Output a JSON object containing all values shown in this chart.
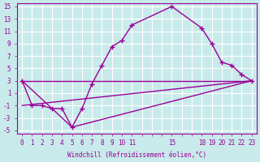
{
  "xlabel": "Windchill (Refroidissement éolien,°C)",
  "bg_color": "#c8eaea",
  "grid_color": "#ffffff",
  "line_color": "#990099",
  "marker_color": "#990099",
  "xlim": [
    -0.5,
    23.5
  ],
  "ylim": [
    -5.5,
    15.5
  ],
  "y_ticks": [
    -5,
    -3,
    -1,
    1,
    3,
    5,
    7,
    9,
    11,
    13,
    15
  ],
  "x_tick_show": [
    0,
    1,
    2,
    3,
    4,
    5,
    6,
    7,
    8,
    9,
    10,
    11,
    15,
    18,
    19,
    20,
    21,
    22,
    23
  ],
  "x_grid_all": [
    0,
    1,
    2,
    3,
    4,
    5,
    6,
    7,
    8,
    9,
    10,
    11,
    12,
    13,
    14,
    15,
    16,
    17,
    18,
    19,
    20,
    21,
    22,
    23
  ],
  "line1_x": [
    0,
    1,
    2,
    3,
    4,
    5,
    6,
    7,
    8,
    9,
    10,
    11,
    15,
    18,
    19,
    20,
    21,
    22,
    23
  ],
  "line1_y": [
    3,
    -1,
    -1,
    -1.5,
    -1.5,
    -4.5,
    -1.5,
    2.5,
    5.5,
    8.5,
    9.5,
    12,
    15,
    11.5,
    9,
    6,
    5.5,
    4,
    3
  ],
  "line2_x": [
    0,
    5,
    23
  ],
  "line2_y": [
    3,
    -4.5,
    3
  ],
  "line3_x": [
    0,
    23
  ],
  "line3_y": [
    3,
    3
  ],
  "line4_x": [
    0,
    23
  ],
  "line4_y": [
    -1,
    3
  ]
}
